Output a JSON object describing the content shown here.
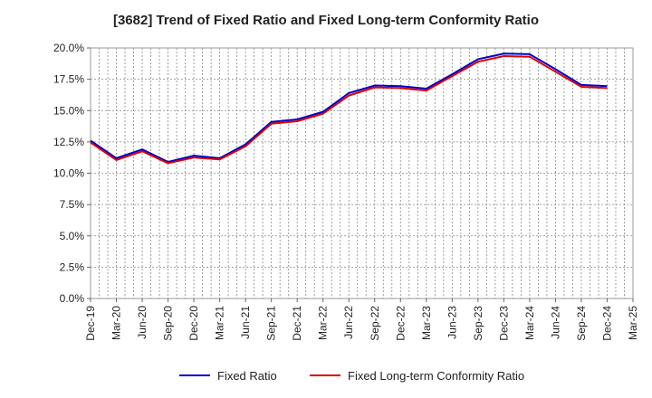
{
  "chart_data": {
    "type": "line",
    "title": "[3682]  Trend of Fixed Ratio and Fixed Long-term Conformity Ratio",
    "xlabel": "",
    "ylabel": "",
    "categories": [
      "Dec-19",
      "Mar-20",
      "Jun-20",
      "Sep-20",
      "Dec-20",
      "Mar-21",
      "Jun-21",
      "Sep-21",
      "Dec-21",
      "Mar-22",
      "Jun-22",
      "Sep-22",
      "Dec-22",
      "Mar-23",
      "Jun-23",
      "Sep-23",
      "Dec-23",
      "Mar-24",
      "Jun-24",
      "Sep-24",
      "Dec-24",
      "Mar-25"
    ],
    "y_ticks": [
      "0.0%",
      "2.5%",
      "5.0%",
      "7.5%",
      "10.0%",
      "12.5%",
      "15.0%",
      "17.5%",
      "20.0%"
    ],
    "ylim": [
      0,
      20
    ],
    "grid": true,
    "legend_position": "bottom",
    "series": [
      {
        "name": "Fixed Ratio",
        "color": "#0000cc",
        "values": [
          12.6,
          11.2,
          11.9,
          10.9,
          11.4,
          11.2,
          12.3,
          14.1,
          14.3,
          14.9,
          16.4,
          17.0,
          16.95,
          16.75,
          17.9,
          19.1,
          19.55,
          19.5,
          18.3,
          17.05,
          16.95,
          null
        ]
      },
      {
        "name": "Fixed Long-term Conformity Ratio",
        "color": "#dd0000",
        "values": [
          12.45,
          11.05,
          11.75,
          10.8,
          11.25,
          11.1,
          12.15,
          13.95,
          14.15,
          14.75,
          16.2,
          16.85,
          16.8,
          16.6,
          17.75,
          18.9,
          19.35,
          19.3,
          18.1,
          16.9,
          16.8,
          null
        ]
      }
    ]
  }
}
